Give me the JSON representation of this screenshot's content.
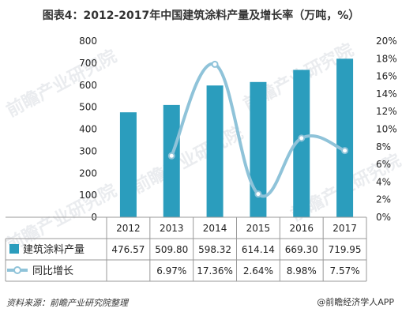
{
  "title": "图表4：2012-2017年中国建筑涂料产量及增长率（万吨，%）",
  "source": "资料来源：前瞻产业研究院整理",
  "credit": "@前瞻经济学人APP",
  "watermark": "前瞻产业研究院",
  "colors": {
    "bar": "#2b9dbd",
    "line": "#8fc3d9",
    "grid": "#d9d9d9",
    "text": "#222222"
  },
  "chart_data": {
    "type": "bar",
    "categories": [
      "2012",
      "2013",
      "2014",
      "2015",
      "2016",
      "2017"
    ],
    "series": [
      {
        "name": "建筑涂料产量",
        "type": "bar",
        "axis": "left",
        "values": [
          476.57,
          509.8,
          598.32,
          614.14,
          669.3,
          719.95
        ],
        "labels": [
          "476.57",
          "509.80",
          "598.32",
          "614.14",
          "669.30",
          "719.95"
        ]
      },
      {
        "name": "同比增长",
        "type": "line",
        "axis": "right",
        "values": [
          null,
          6.97,
          17.36,
          2.64,
          8.98,
          7.57
        ],
        "labels": [
          "",
          "6.97%",
          "17.36%",
          "2.64%",
          "8.98%",
          "7.57%"
        ]
      }
    ],
    "y_left": {
      "min": 0,
      "max": 800,
      "step": 100,
      "ticks": [
        "0",
        "100",
        "200",
        "300",
        "400",
        "500",
        "600",
        "700",
        "800"
      ]
    },
    "y_right": {
      "min": 0,
      "max": 20,
      "step": 2,
      "ticks": [
        "0%",
        "2%",
        "4%",
        "6%",
        "8%",
        "10%",
        "12%",
        "14%",
        "16%",
        "18%",
        "20%"
      ]
    },
    "grid": false,
    "legend": "data-table"
  }
}
